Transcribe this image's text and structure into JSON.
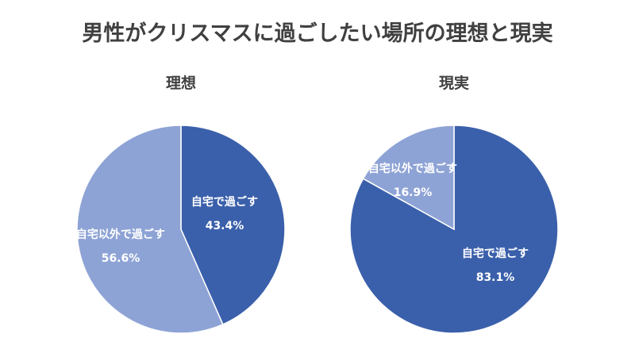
{
  "title": "男性がクリスマスに過ごしたい場所の理想と現実",
  "colors": {
    "dark_blue": "#3b60ab",
    "light_blue": "#8ea3d5",
    "text": "#404040",
    "slice_text": "#ffffff"
  },
  "chart_data": [
    {
      "type": "pie",
      "title": "理想",
      "slices": [
        {
          "label": "自宅で過ごす",
          "value": 43.4,
          "value_label": "43.4%",
          "color": "#3b60ab"
        },
        {
          "label": "自宅以外で過ごす",
          "value": 56.6,
          "value_label": "56.6%",
          "color": "#8ea3d5"
        }
      ],
      "start": "12 o'clock",
      "direction": "clockwise"
    },
    {
      "type": "pie",
      "title": "現実",
      "slices": [
        {
          "label": "自宅で過ごす",
          "value": 83.1,
          "value_label": "83.1%",
          "color": "#3b60ab"
        },
        {
          "label": "自宅以外で過ごす",
          "value": 16.9,
          "value_label": "16.9%",
          "color": "#8ea3d5"
        }
      ],
      "start": "12 o'clock",
      "direction": "clockwise"
    }
  ]
}
